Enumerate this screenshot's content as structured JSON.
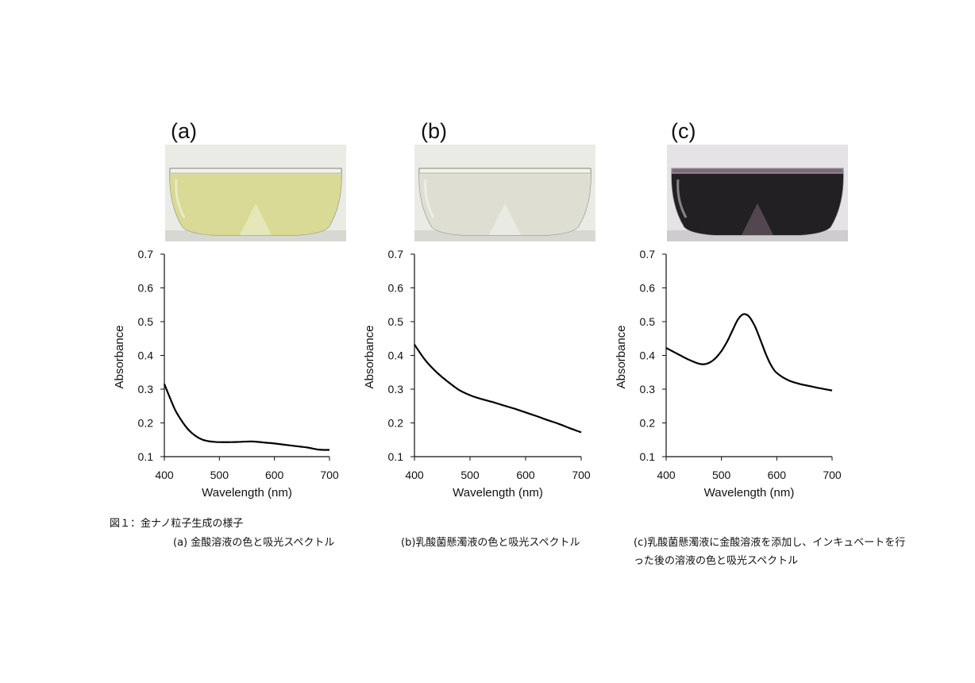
{
  "figure": {
    "caption_title": "図１：金ナノ粒子生成の様子",
    "captions": [
      "(a) 金酸溶液の色と吸光スペクトル",
      "(b)乳酸菌懸濁液の色と吸光スペクトル",
      "(c)乳酸菌懸濁液に金酸溶液を添加し、インキュベートを行った後の溶液の色と吸光スペクトル"
    ],
    "panel_labels": [
      "(a)",
      "(b)",
      "(c)"
    ],
    "solution_colors": [
      "#d6d890",
      "#dcdcd2",
      "#1f1c20"
    ]
  },
  "chart_data": [
    {
      "type": "line",
      "panel": "(a)",
      "xlabel": "Wavelength (nm)",
      "ylabel": "Absorbance",
      "xlim": [
        400,
        700
      ],
      "ylim": [
        0.1,
        0.7
      ],
      "xticks": [
        400,
        500,
        600,
        700
      ],
      "yticks": [
        0.1,
        0.2,
        0.3,
        0.4,
        0.5,
        0.6,
        0.7
      ],
      "grid": false,
      "series": [
        {
          "x": [
            400,
            410,
            420,
            430,
            440,
            450,
            460,
            470,
            480,
            490,
            500,
            520,
            540,
            560,
            580,
            600,
            620,
            640,
            660,
            680,
            700
          ],
          "values": [
            0.315,
            0.275,
            0.237,
            0.21,
            0.187,
            0.17,
            0.158,
            0.15,
            0.146,
            0.144,
            0.143,
            0.143,
            0.144,
            0.145,
            0.142,
            0.139,
            0.135,
            0.131,
            0.127,
            0.121,
            0.12
          ]
        }
      ]
    },
    {
      "type": "line",
      "panel": "(b)",
      "xlabel": "Wavelength (nm)",
      "ylabel": "Absorbance",
      "xlim": [
        400,
        700
      ],
      "ylim": [
        0.1,
        0.7
      ],
      "xticks": [
        400,
        500,
        600,
        700
      ],
      "yticks": [
        0.1,
        0.2,
        0.3,
        0.4,
        0.5,
        0.6,
        0.7
      ],
      "grid": false,
      "series": [
        {
          "x": [
            400,
            420,
            440,
            460,
            480,
            500,
            520,
            540,
            560,
            580,
            600,
            620,
            640,
            660,
            680,
            700
          ],
          "values": [
            0.432,
            0.385,
            0.35,
            0.322,
            0.298,
            0.282,
            0.271,
            0.262,
            0.252,
            0.242,
            0.231,
            0.22,
            0.208,
            0.197,
            0.184,
            0.172
          ]
        }
      ]
    },
    {
      "type": "line",
      "panel": "(c)",
      "xlabel": "Wavelength (nm)",
      "ylabel": "Absorbance",
      "xlim": [
        400,
        700
      ],
      "ylim": [
        0.1,
        0.7
      ],
      "xticks": [
        400,
        500,
        600,
        700
      ],
      "yticks": [
        0.1,
        0.2,
        0.3,
        0.4,
        0.5,
        0.6,
        0.7
      ],
      "grid": false,
      "series": [
        {
          "x": [
            400,
            420,
            440,
            460,
            470,
            480,
            490,
            500,
            510,
            520,
            530,
            540,
            550,
            560,
            570,
            580,
            590,
            600,
            620,
            640,
            660,
            680,
            700
          ],
          "values": [
            0.422,
            0.405,
            0.388,
            0.375,
            0.374,
            0.38,
            0.393,
            0.413,
            0.44,
            0.474,
            0.507,
            0.522,
            0.515,
            0.488,
            0.448,
            0.405,
            0.37,
            0.348,
            0.327,
            0.316,
            0.309,
            0.302,
            0.296
          ]
        }
      ]
    }
  ]
}
